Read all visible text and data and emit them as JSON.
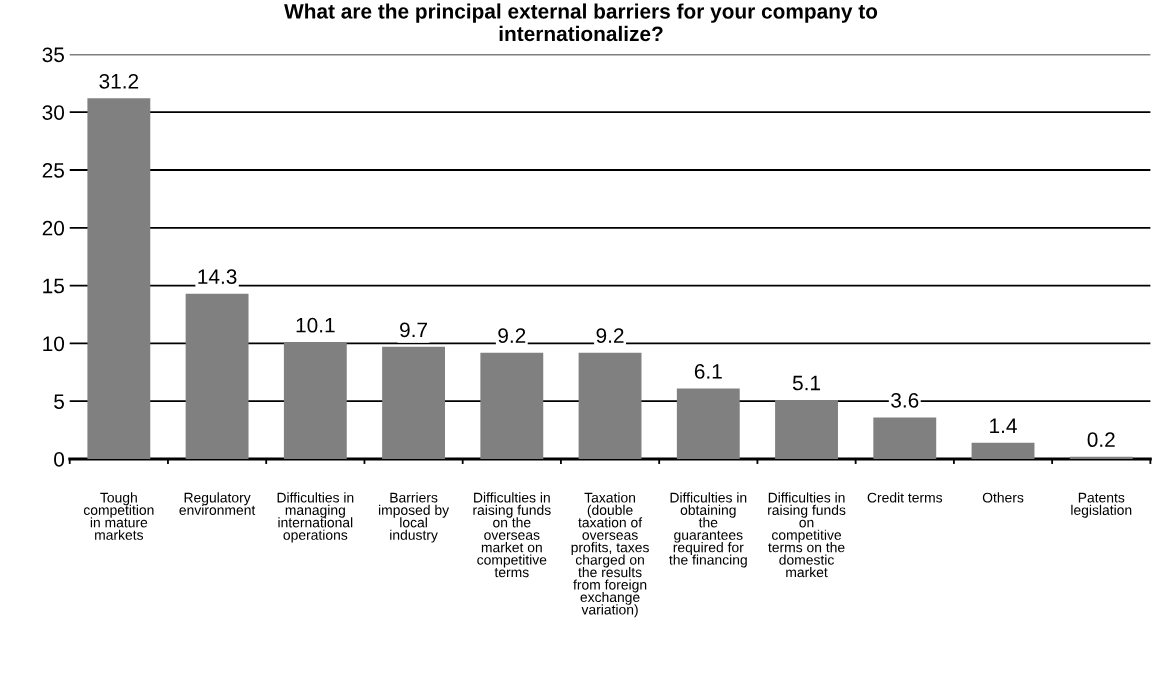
{
  "chart_data": {
    "type": "bar",
    "title": "What are the principal external barriers for your company to\ninternationalize?",
    "categories": [
      "Tough\ncompetition\nin mature\nmarkets",
      "Regulatory\nenvironment",
      "Difficulties in\nmanaging\ninternational\noperations",
      "Barriers\nimposed by\nlocal\nindustry",
      "Difficulties in\nraising funds\non the\noverseas\nmarket on\ncompetitive\nterms",
      "Taxation\n(double\ntaxation of\noverseas\nprofits, taxes\ncharged on\nthe results\nfrom foreign\nexchange\nvariation)",
      "Difficulties in\nobtaining\nthe\nguarantees\nrequired for\nthe financing",
      "Difficulties in\nraising funds\non\ncompetitive\nterms on the\ndomestic\nmarket",
      "Credit terms",
      "Others",
      "Patents\nlegislation"
    ],
    "values": [
      31.2,
      14.3,
      10.1,
      9.7,
      9.2,
      9.2,
      6.1,
      5.1,
      3.6,
      1.4,
      0.2
    ],
    "color": "#808080",
    "ylim": [
      0,
      35
    ],
    "yticks": [
      0,
      5,
      10,
      15,
      20,
      25,
      30,
      35
    ],
    "grid": "y",
    "data_labels": true
  }
}
